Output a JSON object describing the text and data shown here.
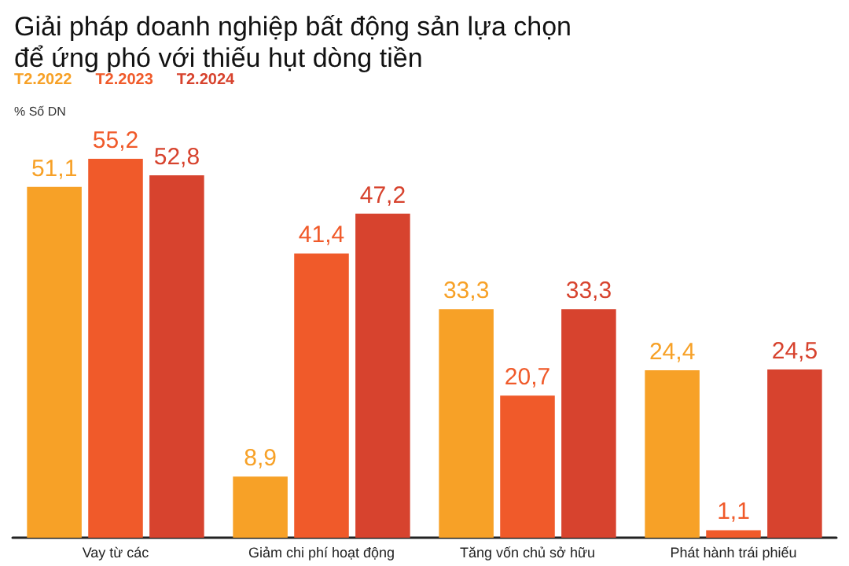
{
  "chart_data": {
    "type": "bar",
    "title": "Giải pháp doanh nghiệp bất động sản lựa chọn\nđể ứng phó với thiếu hụt dòng tiền",
    "ylabel": "% Số DN",
    "categories": [
      "Vay từ các",
      "Giảm chi phí hoạt động",
      "Tăng vốn chủ sở hữu",
      "Phát hành trái phiếu"
    ],
    "series": [
      {
        "name": "T2.2022",
        "color": "#f7a127",
        "values": [
          51.1,
          8.9,
          33.3,
          24.4
        ],
        "value_labels": [
          "51,1",
          "8,9",
          "33,3",
          "24,4"
        ]
      },
      {
        "name": "T2.2023",
        "color": "#f05a2a",
        "values": [
          55.2,
          41.4,
          20.7,
          1.1
        ],
        "value_labels": [
          "55,2",
          "41,4",
          "20,7",
          "1,1"
        ]
      },
      {
        "name": "T2.2024",
        "color": "#d7432e",
        "values": [
          52.8,
          47.2,
          33.3,
          24.5
        ],
        "value_labels": [
          "52,8",
          "47,2",
          "33,3",
          "24,5"
        ]
      }
    ],
    "legend": "top left"
  }
}
